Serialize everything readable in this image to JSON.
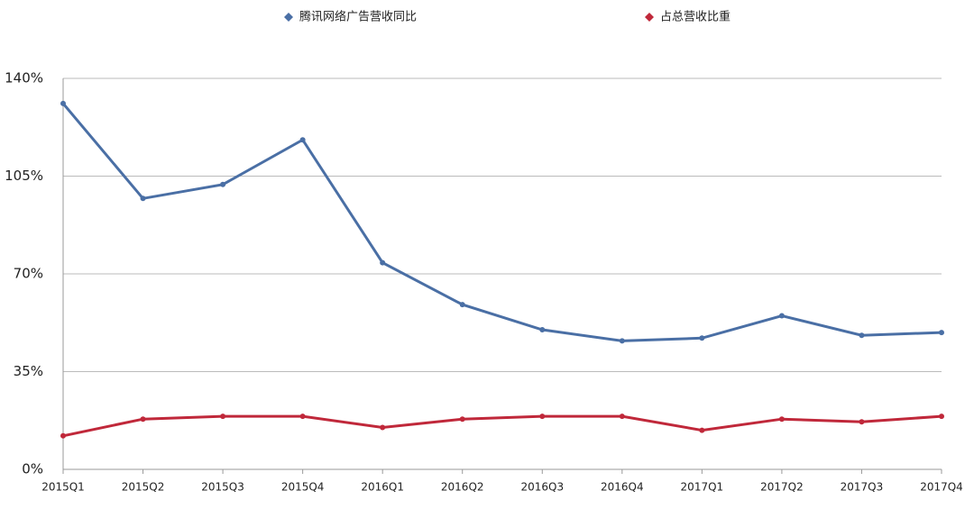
{
  "chart_data": {
    "type": "line",
    "categories": [
      "2015Q1",
      "2015Q2",
      "2015Q3",
      "2015Q4",
      "2016Q1",
      "2016Q2",
      "2016Q3",
      "2016Q4",
      "2017Q1",
      "2017Q2",
      "2017Q3",
      "2017Q4"
    ],
    "series": [
      {
        "name": "腾讯网络广告营收同比",
        "color": "#4a6fa5",
        "values": [
          131,
          97,
          102,
          118,
          74,
          59,
          50,
          46,
          47,
          55,
          48,
          49
        ]
      },
      {
        "name": "占总营收比重",
        "color": "#c0283a",
        "values": [
          12,
          18,
          19,
          19,
          15,
          18,
          19,
          19,
          14,
          18,
          17,
          19
        ]
      }
    ],
    "ylim": [
      0,
      140
    ],
    "yticks": [
      {
        "value": 0,
        "label": "0%"
      },
      {
        "value": 35,
        "label": "35%"
      },
      {
        "value": 70,
        "label": "70%"
      },
      {
        "value": 105,
        "label": "105%"
      },
      {
        "value": 140,
        "label": "140%"
      }
    ],
    "grid": true,
    "legend": "top"
  }
}
